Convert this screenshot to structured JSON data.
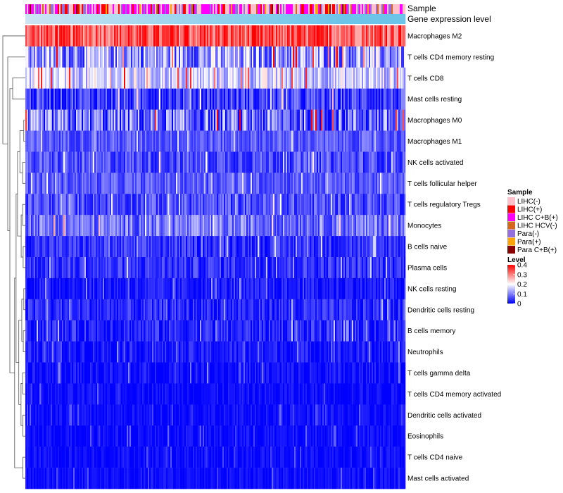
{
  "chart_data": {
    "type": "heatmap",
    "annotation_tracks": [
      {
        "label": "Sample"
      },
      {
        "label": "Gene expression level"
      }
    ],
    "rows": [
      {
        "name": "Macrophages M2",
        "mean": 0.33,
        "spread": 0.07
      },
      {
        "name": "T cells CD4 memory resting",
        "mean": 0.12,
        "spread": 0.1
      },
      {
        "name": "T cells CD8",
        "mean": 0.16,
        "spread": 0.07
      },
      {
        "name": "Mast cells resting",
        "mean": 0.05,
        "spread": 0.06
      },
      {
        "name": "Macrophages M0",
        "mean": 0.08,
        "spread": 0.1
      },
      {
        "name": "Macrophages M1",
        "mean": 0.07,
        "spread": 0.04
      },
      {
        "name": "NK cells activated",
        "mean": 0.06,
        "spread": 0.05
      },
      {
        "name": "T cells follicular helper",
        "mean": 0.07,
        "spread": 0.04
      },
      {
        "name": "T cells regulatory  Tregs",
        "mean": 0.06,
        "spread": 0.05
      },
      {
        "name": "Monocytes",
        "mean": 0.09,
        "spread": 0.06
      },
      {
        "name": "B cells naive",
        "mean": 0.04,
        "spread": 0.04
      },
      {
        "name": "Plasma cells",
        "mean": 0.04,
        "spread": 0.04
      },
      {
        "name": "NK cells resting",
        "mean": 0.02,
        "spread": 0.03
      },
      {
        "name": "Dendritic cells resting",
        "mean": 0.03,
        "spread": 0.04
      },
      {
        "name": "B cells memory",
        "mean": 0.03,
        "spread": 0.04
      },
      {
        "name": "Neutrophils",
        "mean": 0.02,
        "spread": 0.03
      },
      {
        "name": "T cells gamma delta",
        "mean": 0.01,
        "spread": 0.03
      },
      {
        "name": "T cells CD4 memory activated",
        "mean": 0.01,
        "spread": 0.02
      },
      {
        "name": "Dendritic cells activated",
        "mean": 0.01,
        "spread": 0.02
      },
      {
        "name": "Eosinophils",
        "mean": 0.01,
        "spread": 0.02
      },
      {
        "name": "T cells CD4 naive",
        "mean": 0.01,
        "spread": 0.02
      },
      {
        "name": "Mast cells activated",
        "mean": 0.01,
        "spread": 0.02
      }
    ],
    "n_samples": 270,
    "legend_sample": {
      "title": "Sample",
      "entries": [
        {
          "label": "LIHC(-)",
          "color": "#ffc0cb"
        },
        {
          "label": "LIHC(+)",
          "color": "#ff0000"
        },
        {
          "label": "LIHC C+B(+)",
          "color": "#ff00ff"
        },
        {
          "label": "LIHC HCV(-)",
          "color": "#d2691e"
        },
        {
          "label": "Para(-)",
          "color": "#9370db"
        },
        {
          "label": "Para(+)",
          "color": "#ffa500"
        },
        {
          "label": "Para C+B(+)",
          "color": "#8b0000"
        }
      ]
    },
    "legend_level": {
      "title": "Level",
      "ticks": [
        "0.4",
        "0.3",
        "0.2",
        "0.1",
        "0"
      ],
      "range": [
        0,
        0.4
      ],
      "colors": [
        "#0000ff",
        "#ffffff",
        "#ff0000"
      ]
    },
    "expression_track_colors": [
      "#cce4f3",
      "#6cc4e8"
    ]
  }
}
